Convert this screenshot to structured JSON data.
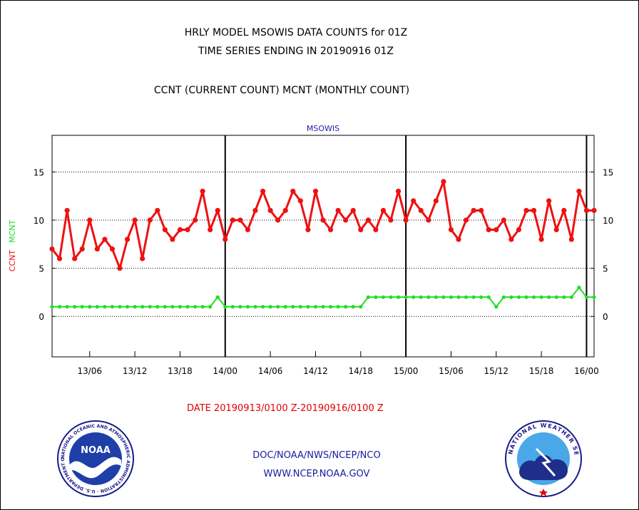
{
  "titles": {
    "line1": "HRLY MODEL MSOWIS DATA COUNTS for 01Z",
    "line2": "TIME SERIES ENDING IN 20190916 01Z",
    "line3": "CCNT (CURRENT COUNT) MCNT (MONTHLY COUNT)"
  },
  "date_range": "DATE 20190913/0100 Z-20190916/0100 Z",
  "footer": {
    "org": "DOC/NOAA/NWS/NCEP/NCO",
    "url": "WWW.NCEP.NOAA.GOV"
  },
  "logos": {
    "left_text": "NOAA",
    "left_ring": "NATIONAL OCEANIC AND ATMOSPHERIC ADMINISTRATION · U.S. DEPARTMENT OF COMMERCE ·",
    "right_ring": "NATIONAL WEATHER SERVICE"
  },
  "colors": {
    "ccnt": "#ee1111",
    "mcnt": "#22dd22",
    "plot_title": "#2222aa",
    "date_text": "#e00000"
  },
  "chart_data": {
    "type": "line",
    "title": "MSOWIS",
    "ylabel_left": [
      "CCNT",
      "MCNT"
    ],
    "ylim": [
      -4.2,
      18.8
    ],
    "yticks": [
      0,
      5,
      10,
      15
    ],
    "x_unit": "hours from 20190913/0100Z",
    "x_range": [
      0,
      72
    ],
    "xticks": [
      {
        "x": 5,
        "label": "13/06"
      },
      {
        "x": 11,
        "label": "13/12"
      },
      {
        "x": 17,
        "label": "13/18"
      },
      {
        "x": 23,
        "label": "14/00"
      },
      {
        "x": 29,
        "label": "14/06"
      },
      {
        "x": 35,
        "label": "14/12"
      },
      {
        "x": 41,
        "label": "14/18"
      },
      {
        "x": 47,
        "label": "15/00"
      },
      {
        "x": 53,
        "label": "15/06"
      },
      {
        "x": 59,
        "label": "15/12"
      },
      {
        "x": 65,
        "label": "15/18"
      },
      {
        "x": 71,
        "label": "16/00"
      }
    ],
    "day_lines": [
      23,
      47,
      71
    ],
    "grid": "horizontal-dotted",
    "series": [
      {
        "name": "CCNT",
        "values": [
          7,
          6,
          11,
          6,
          7,
          10,
          7,
          8,
          7,
          5,
          8,
          10,
          6,
          10,
          11,
          9,
          8,
          9,
          9,
          10,
          13,
          9,
          11,
          8,
          10,
          10,
          9,
          11,
          13,
          11,
          10,
          11,
          13,
          12,
          9,
          13,
          10,
          9,
          11,
          10,
          11,
          9,
          10,
          9,
          11,
          10,
          13,
          10,
          12,
          11,
          10,
          12,
          14,
          9,
          8,
          10,
          11,
          11,
          9,
          9,
          10,
          8,
          9,
          11,
          11,
          8,
          12,
          9,
          11,
          8,
          13,
          11,
          11
        ]
      },
      {
        "name": "MCNT",
        "values": [
          1,
          1,
          1,
          1,
          1,
          1,
          1,
          1,
          1,
          1,
          1,
          1,
          1,
          1,
          1,
          1,
          1,
          1,
          1,
          1,
          1,
          1,
          2,
          1,
          1,
          1,
          1,
          1,
          1,
          1,
          1,
          1,
          1,
          1,
          1,
          1,
          1,
          1,
          1,
          1,
          1,
          1,
          2,
          2,
          2,
          2,
          2,
          2,
          2,
          2,
          2,
          2,
          2,
          2,
          2,
          2,
          2,
          2,
          2,
          1,
          2,
          2,
          2,
          2,
          2,
          2,
          2,
          2,
          2,
          2,
          3,
          2,
          2
        ]
      }
    ]
  }
}
